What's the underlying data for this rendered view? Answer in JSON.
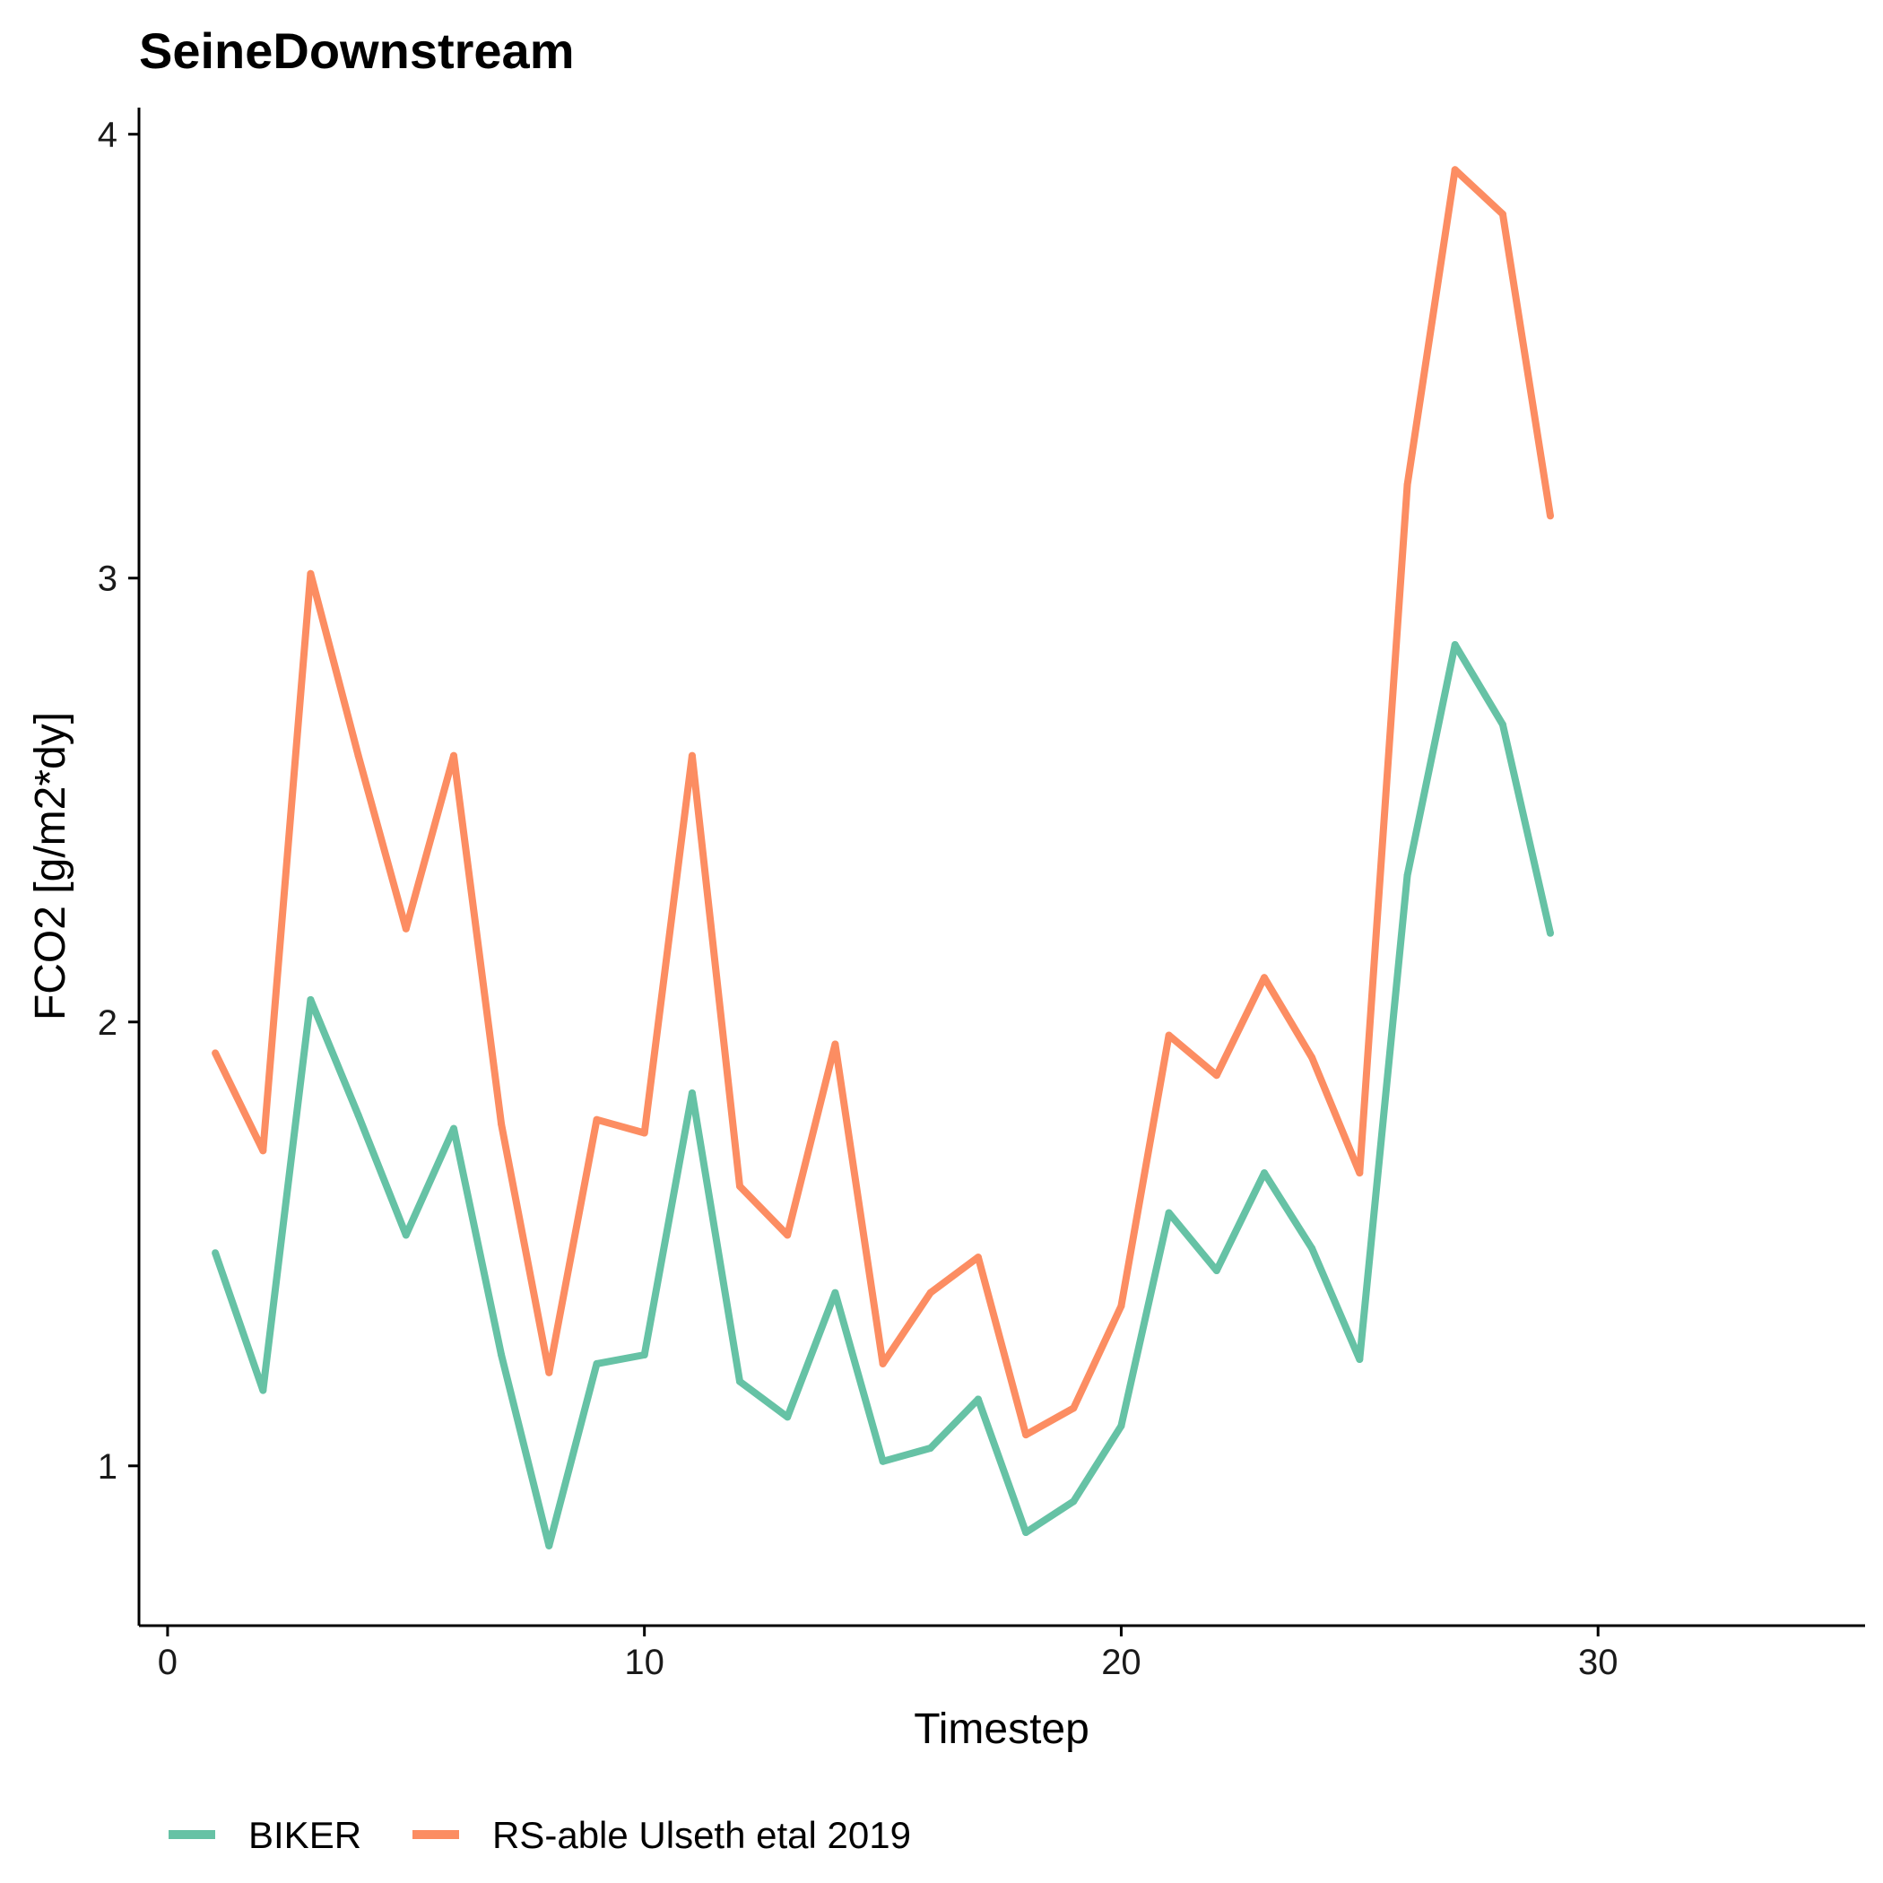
{
  "chart_data": {
    "type": "line",
    "title": "SeineDownstream",
    "xlabel": "Timestep",
    "ylabel": "FCO2 [g/m2*dy]",
    "xlim": [
      -0.6,
      35.6
    ],
    "ylim": [
      0.64,
      4.06
    ],
    "xticks": [
      "0",
      "10",
      "20",
      "30"
    ],
    "yticks": [
      "1",
      "2",
      "3",
      "4"
    ],
    "grid": false,
    "legend_position": "bottom-left",
    "x": [
      1,
      2,
      3,
      4,
      5,
      6,
      7,
      8,
      9,
      10,
      11,
      12,
      13,
      14,
      15,
      16,
      17,
      18,
      19,
      20,
      21,
      22,
      23,
      24,
      25,
      26,
      27,
      28,
      29
    ],
    "series": [
      {
        "name": "BIKER",
        "color": "#66c2a5",
        "values": [
          1.48,
          1.17,
          2.05,
          1.79,
          1.52,
          1.76,
          1.25,
          0.82,
          1.23,
          1.25,
          1.84,
          1.19,
          1.11,
          1.39,
          1.01,
          1.04,
          1.15,
          0.85,
          0.92,
          1.09,
          1.57,
          1.44,
          1.66,
          1.49,
          1.24,
          2.33,
          2.85,
          2.67,
          2.2
        ]
      },
      {
        "name": "RS-able Ulseth etal 2019",
        "color": "#fc8d62",
        "values": [
          1.93,
          1.71,
          3.01,
          2.6,
          2.21,
          2.6,
          1.77,
          1.21,
          1.78,
          1.75,
          2.6,
          1.63,
          1.52,
          1.95,
          1.23,
          1.39,
          1.47,
          1.07,
          1.13,
          1.36,
          1.97,
          1.88,
          2.1,
          1.92,
          1.66,
          3.21,
          3.92,
          3.82,
          3.14
        ]
      }
    ]
  }
}
